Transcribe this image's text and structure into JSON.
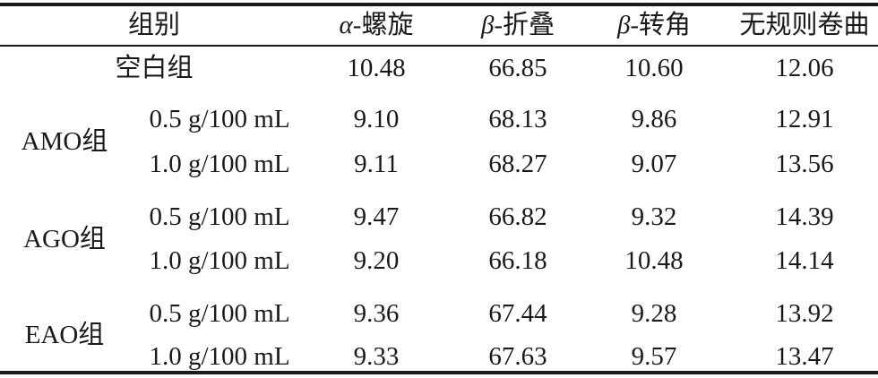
{
  "table": {
    "header": [
      "组别",
      "α-螺旋",
      "β-折叠",
      "β-转角",
      "无规则卷曲"
    ],
    "control": {
      "label": "空白组",
      "values": [
        "10.48",
        "66.85",
        "10.60",
        "12.06"
      ]
    },
    "groups": [
      {
        "label": "AMO组",
        "rows": [
          {
            "dose": "0.5 g/100 mL",
            "values": [
              "9.10",
              "68.13",
              "9.86",
              "12.91"
            ]
          },
          {
            "dose": "1.0 g/100 mL",
            "values": [
              "9.11",
              "68.27",
              "9.07",
              "13.56"
            ]
          }
        ]
      },
      {
        "label": "AGO组",
        "rows": [
          {
            "dose": "0.5 g/100 mL",
            "values": [
              "9.47",
              "66.82",
              "9.32",
              "14.39"
            ]
          },
          {
            "dose": "1.0 g/100 mL",
            "values": [
              "9.20",
              "66.18",
              "10.48",
              "14.14"
            ]
          }
        ]
      },
      {
        "label": "EAO组",
        "rows": [
          {
            "dose": "0.5 g/100 mL",
            "values": [
              "9.36",
              "67.44",
              "9.28",
              "13.92"
            ]
          },
          {
            "dose": "1.0 g/100 mL",
            "values": [
              "9.33",
              "67.63",
              "9.57",
              "13.47"
            ]
          }
        ]
      }
    ]
  }
}
